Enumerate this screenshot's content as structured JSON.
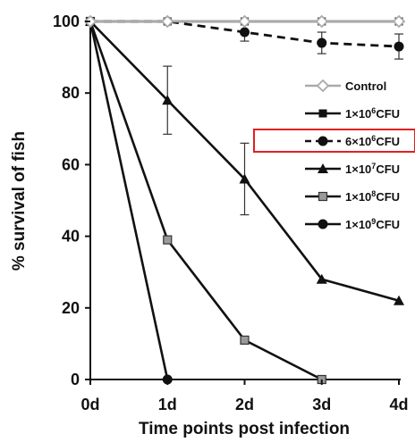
{
  "chart_data": {
    "type": "line",
    "xlabel": "Time points post infection",
    "ylabel": "% survival of fish",
    "categories": [
      "0d",
      "1d",
      "2d",
      "3d",
      "4d"
    ],
    "yticks": [
      "0",
      "20",
      "40",
      "60",
      "80",
      "100"
    ],
    "ylim": [
      0,
      100
    ],
    "grid": false,
    "legend_position": "right",
    "series": [
      {
        "label_main": "Control",
        "label_exp": "",
        "label_unit": "",
        "values": [
          100,
          100,
          100,
          100,
          100
        ],
        "marker": "diamond-open",
        "color": "#aaaaaa",
        "dash": false
      },
      {
        "label_main": "1×10",
        "label_exp": "6",
        "label_unit": "CFU",
        "values": [
          100,
          100,
          100,
          100,
          100
        ],
        "marker": "square",
        "color": "#111111",
        "dash": false
      },
      {
        "label_main": "6×10",
        "label_exp": "6",
        "label_unit": "CFU",
        "values": [
          100,
          100,
          97,
          94,
          93
        ],
        "errors": [
          0,
          0,
          2.5,
          3,
          3.5
        ],
        "marker": "circle",
        "color": "#111111",
        "dash": true,
        "highlighted": true
      },
      {
        "label_main": "1×10",
        "label_exp": "7",
        "label_unit": "CFU",
        "values": [
          100,
          78,
          56,
          28,
          22
        ],
        "errors": [
          0,
          9.5,
          10,
          0,
          0
        ],
        "marker": "triangle",
        "color": "#111111",
        "dash": false
      },
      {
        "label_main": "1×10",
        "label_exp": "8",
        "label_unit": "CFU",
        "values": [
          100,
          39,
          11,
          0,
          null
        ],
        "marker": "square-grey",
        "color": "#111111",
        "dash": false
      },
      {
        "label_main": "1×10",
        "label_exp": "9",
        "label_unit": "CFU",
        "values": [
          100,
          0,
          null,
          null,
          null
        ],
        "marker": "circle",
        "color": "#111111",
        "dash": false
      }
    ],
    "highlight_color": "#e02020"
  }
}
